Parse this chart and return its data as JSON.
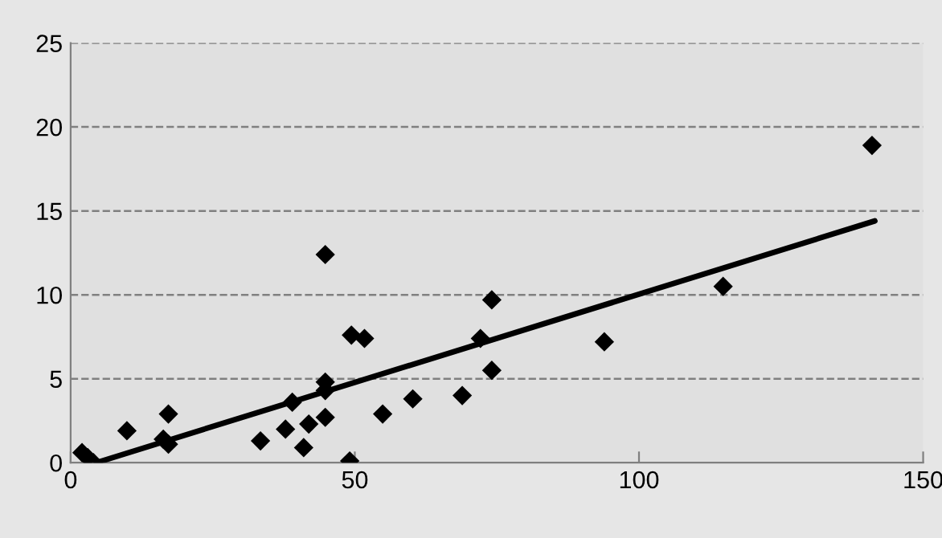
{
  "chart_data": {
    "type": "scatter",
    "grid": "y",
    "xlim": [
      0,
      150
    ],
    "xticks": [
      0,
      50,
      100,
      150
    ],
    "ylim": [
      0,
      25
    ],
    "yticks": [
      0,
      5,
      10,
      15,
      20,
      25
    ],
    "series": [
      {
        "marker": "diamond",
        "color": "#000000",
        "x": [
          2.0,
          3.0,
          4.0,
          9.9,
          16.3,
          17.2,
          17.2,
          33.4,
          37.8,
          39.0,
          41.0,
          41.9,
          44.8,
          44.8,
          44.8,
          44.8,
          49.1,
          49.4,
          51.7,
          54.9,
          60.2,
          68.9,
          72.1,
          74.1,
          74.1,
          93.9,
          114.8,
          141.0
        ],
        "values": [
          0.6,
          0.3,
          0.0,
          1.9,
          1.4,
          1.1,
          2.9,
          1.3,
          2.0,
          3.6,
          0.9,
          2.3,
          12.4,
          4.8,
          4.3,
          2.7,
          0.1,
          7.6,
          7.4,
          2.9,
          3.8,
          4.0,
          7.4,
          9.7,
          5.5,
          7.2,
          10.5,
          18.9
        ]
      },
      {
        "type": "line",
        "marker": "none",
        "line_style": "solid",
        "color": "#000000",
        "x": [
          4.5,
          141.5
        ],
        "values": [
          0.0,
          14.4
        ]
      }
    ]
  }
}
